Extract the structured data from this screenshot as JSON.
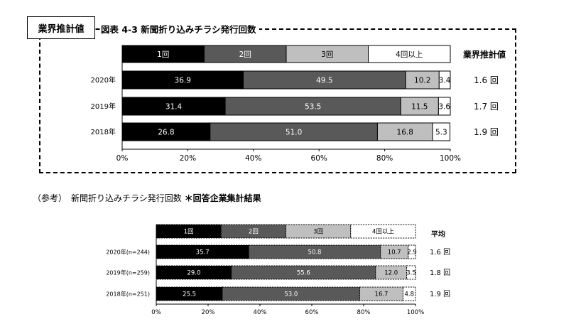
{
  "badge": "業界推計値",
  "chart1_title": "図表 4-3 新聞折り込みチラシ発行回数",
  "chart2_title_prefix": "（参考）　新聞折り込みチラシ発行回数",
  "chart2_title_suffix": "＊回答企業集計結果",
  "chart_data": [
    {
      "type": "bar",
      "orientation": "horizontal-stacked-100",
      "legend": [
        "1回",
        "2回",
        "3回",
        "4回以上"
      ],
      "categories": [
        "2020年",
        "2019年",
        "2018年"
      ],
      "series": [
        {
          "name": "1回",
          "color": "#000000",
          "values": [
            36.9,
            31.4,
            26.8
          ]
        },
        {
          "name": "2回",
          "color": "#595959",
          "values": [
            49.5,
            53.5,
            51.0
          ]
        },
        {
          "name": "3回",
          "color": "#bfbfbf",
          "values": [
            10.2,
            11.5,
            16.8
          ]
        },
        {
          "name": "4回以上",
          "color": "#ffffff",
          "values": [
            3.4,
            3.6,
            5.3
          ]
        }
      ],
      "side_header": "業界推計値",
      "side_values": [
        "1.6 回",
        "1.7 回",
        "1.9 回"
      ],
      "xticks": [
        "0%",
        "20%",
        "40%",
        "60%",
        "80%",
        "100%"
      ],
      "xlim": [
        0,
        100
      ]
    },
    {
      "type": "bar",
      "orientation": "horizontal-stacked-100",
      "legend": [
        "1回",
        "2回",
        "3回",
        "4回以上"
      ],
      "categories": [
        "2020年(n=244)",
        "2019年(n=259)",
        "2018年(n=251)"
      ],
      "series": [
        {
          "name": "1回",
          "color": "#000000",
          "values": [
            35.7,
            29.0,
            25.5
          ]
        },
        {
          "name": "2回",
          "color": "#595959",
          "values": [
            50.8,
            55.6,
            53.0
          ]
        },
        {
          "name": "3回",
          "color": "#bfbfbf",
          "values": [
            10.7,
            12.0,
            16.7
          ]
        },
        {
          "name": "4回以上",
          "color": "#ffffff",
          "values": [
            2.9,
            3.5,
            4.8
          ]
        }
      ],
      "side_header": "平均",
      "side_values": [
        "1.6 回",
        "1.8 回",
        "1.9 回"
      ],
      "xticks": [
        "0%",
        "20%",
        "40%",
        "60%",
        "80%",
        "100%"
      ],
      "xlim": [
        0,
        100
      ]
    }
  ]
}
